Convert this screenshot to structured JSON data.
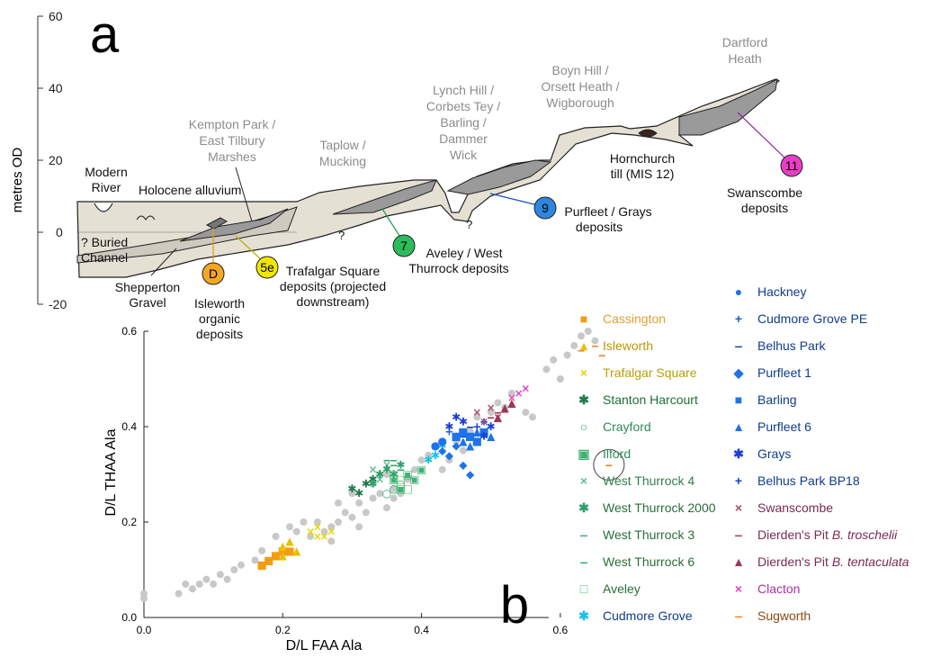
{
  "panel_a": {
    "letter": "a",
    "ylabel": "metres OD",
    "yticks": [
      "60",
      "40",
      "20",
      "0",
      "-20"
    ],
    "labels": {
      "modern_river": [
        "Modern",
        "River"
      ],
      "holocene": "Holocene alluvium",
      "buried_channel": [
        "? Buried",
        "Channel"
      ],
      "shepperton": [
        "Shepperton",
        "Gravel"
      ],
      "isleworth": [
        "Isleworth",
        "organic",
        "deposits"
      ],
      "kempton": [
        "Kempton Park /",
        "East Tilbury",
        "Marshes"
      ],
      "trafalgar": [
        "Trafalgar Square",
        "deposits (projected",
        "downstream)"
      ],
      "taplow": [
        "Taplow /",
        "Mucking"
      ],
      "aveley": [
        "Aveley / West",
        "Thurrock deposits"
      ],
      "lynch": [
        "Lynch Hill /",
        "Corbets Tey /",
        "Barling /",
        "Dammer",
        "Wick"
      ],
      "purfleet": [
        "Purfleet / Grays",
        "deposits"
      ],
      "boyn": [
        "Boyn Hill /",
        "Orsett Heath /",
        "Wigborough"
      ],
      "hornchurch": [
        "Hornchurch",
        "till (MIS 12)"
      ],
      "dartford": [
        "Dartford",
        "Heath"
      ],
      "swanscombe": [
        "Swanscombe",
        "deposits"
      ],
      "question": "?"
    },
    "markers": [
      {
        "label": "D",
        "color": "#f5a623"
      },
      {
        "label": "5e",
        "color": "#f2e600"
      },
      {
        "label": "7",
        "color": "#2dbb5d"
      },
      {
        "label": "9",
        "color": "#2e86de"
      },
      {
        "label": "11",
        "color": "#e83ec5"
      }
    ]
  },
  "panel_b": {
    "letter": "b"
  },
  "chart_data": {
    "type": "scatter",
    "xlabel": "D/L FAA Ala",
    "ylabel": "D/L THAA Ala",
    "xlim": [
      0.0,
      0.7
    ],
    "ylim": [
      0.0,
      0.6
    ],
    "xticks": [
      "0.0",
      "0.2",
      "0.4",
      "0.6"
    ],
    "yticks": [
      "0.0",
      "0.2",
      "0.4",
      "0.6"
    ],
    "background_color": "#c8c8c8",
    "background_points": [
      [
        0.0,
        0.04
      ],
      [
        0.0,
        0.05
      ],
      [
        0.05,
        0.05
      ],
      [
        0.06,
        0.07
      ],
      [
        0.07,
        0.06
      ],
      [
        0.08,
        0.07
      ],
      [
        0.09,
        0.08
      ],
      [
        0.1,
        0.07
      ],
      [
        0.11,
        0.09
      ],
      [
        0.12,
        0.08
      ],
      [
        0.13,
        0.1
      ],
      [
        0.14,
        0.11
      ],
      [
        0.16,
        0.12
      ],
      [
        0.17,
        0.14
      ],
      [
        0.19,
        0.17
      ],
      [
        0.21,
        0.19
      ],
      [
        0.22,
        0.18
      ],
      [
        0.23,
        0.2
      ],
      [
        0.24,
        0.17
      ],
      [
        0.26,
        0.18
      ],
      [
        0.27,
        0.19
      ],
      [
        0.28,
        0.2
      ],
      [
        0.29,
        0.22
      ],
      [
        0.3,
        0.21
      ],
      [
        0.31,
        0.24
      ],
      [
        0.32,
        0.22
      ],
      [
        0.33,
        0.25
      ],
      [
        0.34,
        0.26
      ],
      [
        0.35,
        0.23
      ],
      [
        0.36,
        0.27
      ],
      [
        0.37,
        0.26
      ],
      [
        0.38,
        0.29
      ],
      [
        0.39,
        0.31
      ],
      [
        0.4,
        0.33
      ],
      [
        0.41,
        0.34
      ],
      [
        0.42,
        0.36
      ],
      [
        0.43,
        0.31
      ],
      [
        0.44,
        0.33
      ],
      [
        0.45,
        0.37
      ],
      [
        0.46,
        0.35
      ],
      [
        0.47,
        0.39
      ],
      [
        0.48,
        0.42
      ],
      [
        0.5,
        0.43
      ],
      [
        0.51,
        0.45
      ],
      [
        0.52,
        0.44
      ],
      [
        0.53,
        0.47
      ],
      [
        0.55,
        0.43
      ],
      [
        0.56,
        0.42
      ],
      [
        0.58,
        0.52
      ],
      [
        0.59,
        0.54
      ],
      [
        0.6,
        0.5
      ],
      [
        0.61,
        0.55
      ],
      [
        0.62,
        0.57
      ],
      [
        0.63,
        0.59
      ],
      [
        0.64,
        0.6
      ],
      [
        0.65,
        0.58
      ],
      [
        0.3,
        0.26
      ],
      [
        0.28,
        0.24
      ],
      [
        0.25,
        0.2
      ],
      [
        0.33,
        0.28
      ],
      [
        0.35,
        0.3
      ],
      [
        0.27,
        0.16
      ],
      [
        0.31,
        0.19
      ],
      [
        0.36,
        0.25
      ]
    ],
    "series": [
      {
        "name": "Cassington",
        "color": "#f39c12",
        "label_color": "#e0a030",
        "marker": "■",
        "points": [
          [
            0.18,
            0.12
          ],
          [
            0.19,
            0.13
          ],
          [
            0.2,
            0.14
          ],
          [
            0.21,
            0.14
          ],
          [
            0.17,
            0.11
          ]
        ]
      },
      {
        "name": "Isleworth",
        "color": "#e6c200",
        "label_color": "#b8960a",
        "marker": "▲",
        "points": [
          [
            0.2,
            0.15
          ],
          [
            0.21,
            0.16
          ],
          [
            0.22,
            0.14
          ],
          [
            0.2,
            0.13
          ]
        ]
      },
      {
        "name": "Trafalgar Square",
        "color": "#e6d600",
        "label_color": "#b8a010",
        "marker": "×",
        "points": [
          [
            0.24,
            0.18
          ],
          [
            0.25,
            0.19
          ],
          [
            0.26,
            0.17
          ],
          [
            0.27,
            0.18
          ],
          [
            0.25,
            0.17
          ]
        ]
      },
      {
        "name": "Stanton Harcourt",
        "color": "#1f7a4d",
        "label_color": "#1e6e38",
        "marker": "✱",
        "points": [
          [
            0.31,
            0.26
          ],
          [
            0.32,
            0.28
          ],
          [
            0.33,
            0.29
          ],
          [
            0.3,
            0.27
          ],
          [
            0.34,
            0.3
          ]
        ]
      },
      {
        "name": "Crayford",
        "color": "#2eaa6b",
        "label_color": "#2e8b57",
        "marker": "○",
        "points": [
          [
            0.36,
            0.27
          ],
          [
            0.37,
            0.28
          ],
          [
            0.35,
            0.26
          ]
        ]
      },
      {
        "name": "Ilford",
        "color": "#3cb371",
        "label_color": "#2e8b57",
        "marker": "▣",
        "points": [
          [
            0.37,
            0.27
          ],
          [
            0.38,
            0.3
          ],
          [
            0.39,
            0.29
          ],
          [
            0.36,
            0.29
          ],
          [
            0.4,
            0.31
          ]
        ]
      },
      {
        "name": "West Thurrock 4",
        "color": "#5fbf8f",
        "label_color": "#2f7f4f",
        "marker": "×",
        "points": [
          [
            0.33,
            0.31
          ],
          [
            0.34,
            0.29
          ],
          [
            0.35,
            0.32
          ]
        ]
      },
      {
        "name": "West Thurrock 2000",
        "color": "#2e9e6b",
        "label_color": "#2a6e3a",
        "marker": "✱",
        "points": [
          [
            0.34,
            0.3
          ],
          [
            0.35,
            0.31
          ],
          [
            0.36,
            0.3
          ],
          [
            0.33,
            0.28
          ],
          [
            0.37,
            0.32
          ]
        ]
      },
      {
        "name": "West Thurrock 3",
        "color": "#3aa36e",
        "label_color": "#2a6e3a",
        "marker": "‒",
        "points": [
          [
            0.35,
            0.33
          ],
          [
            0.36,
            0.32
          ]
        ]
      },
      {
        "name": "West Thurrock 6",
        "color": "#27ae60",
        "label_color": "#2a6e3a",
        "marker": "‒",
        "points": [
          [
            0.36,
            0.33
          ],
          [
            0.37,
            0.31
          ]
        ]
      },
      {
        "name": "Aveley",
        "color": "#4cc46e",
        "label_color": "#2a6e3a",
        "marker": "□",
        "points": [
          [
            0.37,
            0.29
          ],
          [
            0.38,
            0.27
          ],
          [
            0.36,
            0.3
          ]
        ]
      },
      {
        "name": "Cudmore Grove",
        "color": "#19c1e6",
        "label_color": "#0f3c8a",
        "marker": "✱",
        "points": [
          [
            0.42,
            0.34
          ],
          [
            0.41,
            0.33
          ],
          [
            0.43,
            0.36
          ]
        ]
      },
      {
        "name": "Hackney",
        "color": "#1e73e8",
        "label_color": "#0f3c8a",
        "marker": "●",
        "points": [
          [
            0.42,
            0.36
          ],
          [
            0.43,
            0.37
          ]
        ]
      },
      {
        "name": "Cudmore Grove PE",
        "color": "#1a5fd6",
        "label_color": "#0f3c8a",
        "marker": "+",
        "points": [
          [
            0.44,
            0.39
          ],
          [
            0.45,
            0.38
          ]
        ]
      },
      {
        "name": "Belhus Park",
        "color": "#0b3fa8",
        "label_color": "#0f3c8a",
        "marker": "‒",
        "points": [
          [
            0.46,
            0.38
          ],
          [
            0.47,
            0.4
          ]
        ]
      },
      {
        "name": "Purfleet 1",
        "color": "#1e73e8",
        "label_color": "#0f3c8a",
        "marker": "◆",
        "points": [
          [
            0.44,
            0.34
          ],
          [
            0.45,
            0.36
          ],
          [
            0.46,
            0.32
          ],
          [
            0.47,
            0.3
          ],
          [
            0.43,
            0.35
          ]
        ]
      },
      {
        "name": "Barling",
        "color": "#1e73e8",
        "label_color": "#0f3c8a",
        "marker": "■",
        "points": [
          [
            0.45,
            0.38
          ],
          [
            0.46,
            0.39
          ],
          [
            0.47,
            0.38
          ],
          [
            0.48,
            0.37
          ],
          [
            0.49,
            0.39
          ]
        ]
      },
      {
        "name": "Purfleet 6",
        "color": "#1e73e8",
        "label_color": "#0f3c8a",
        "marker": "▲",
        "points": [
          [
            0.46,
            0.37
          ],
          [
            0.48,
            0.39
          ],
          [
            0.5,
            0.38
          ],
          [
            0.47,
            0.36
          ]
        ]
      },
      {
        "name": "Grays",
        "color": "#1a3fd6",
        "label_color": "#0f3c8a",
        "marker": "✱",
        "points": [
          [
            0.44,
            0.4
          ],
          [
            0.45,
            0.42
          ],
          [
            0.49,
            0.38
          ],
          [
            0.5,
            0.4
          ],
          [
            0.46,
            0.41
          ]
        ]
      },
      {
        "name": "Belhus Park BP18",
        "color": "#1a3fd6",
        "label_color": "#0f3c8a",
        "marker": "+",
        "points": [
          [
            0.48,
            0.4
          ],
          [
            0.49,
            0.41
          ]
        ]
      },
      {
        "name": "Swanscombe",
        "color": "#a84a73",
        "label_color": "#7a2a52",
        "marker": "×",
        "points": [
          [
            0.48,
            0.43
          ],
          [
            0.5,
            0.44
          ],
          [
            0.51,
            0.42
          ],
          [
            0.49,
            0.41
          ]
        ]
      },
      {
        "name": "Dierden's Pit B. troschelii",
        "color": "#9e3358",
        "label_color": "#7a2a52",
        "marker": "‒",
        "points": [
          [
            0.5,
            0.42
          ],
          [
            0.51,
            0.43
          ]
        ]
      },
      {
        "name": "Dierden's Pit B. tentaculata",
        "color": "#9e3358",
        "label_color": "#7a2a52",
        "marker": "▲",
        "points": [
          [
            0.52,
            0.44
          ],
          [
            0.53,
            0.45
          ],
          [
            0.51,
            0.42
          ]
        ]
      },
      {
        "name": "Clacton",
        "color": "#e83ec5",
        "label_color": "#b02fa0",
        "marker": "×",
        "points": [
          [
            0.53,
            0.46
          ],
          [
            0.54,
            0.47
          ],
          [
            0.55,
            0.48
          ]
        ]
      },
      {
        "name": "Sugworth",
        "color": "#f0821e",
        "label_color": "#8a4a12",
        "marker": "‒",
        "points": [
          [
            0.63,
            0.56
          ],
          [
            0.65,
            0.57
          ],
          [
            0.66,
            0.55
          ],
          [
            0.67,
            0.32
          ]
        ]
      }
    ],
    "circled_point": [
      0.67,
      0.32
    ]
  }
}
